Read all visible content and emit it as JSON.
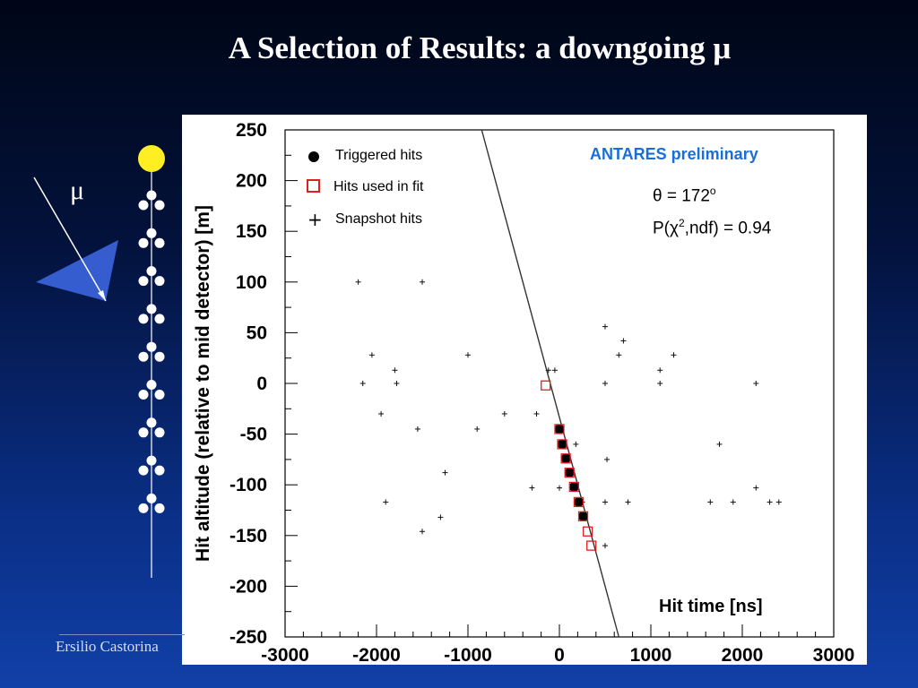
{
  "slide": {
    "title": "A Selection of Results: a downgoing μ",
    "footer": "Ersilio Castorina",
    "muon_label": "μ"
  },
  "colors": {
    "om_top": "#ffee22",
    "om": "#ffffff",
    "cone": "#3f6ae8",
    "fit_square": "#e02020",
    "annotation_blue": "#1a6ed8"
  },
  "chart_data": {
    "type": "scatter",
    "xlabel": "Hit time [ns]",
    "ylabel": "Hit altitude (relative to mid detector)  [m]",
    "xlim": [
      -3000,
      3000
    ],
    "ylim": [
      -250,
      250
    ],
    "x_ticks": [
      -3000,
      -2000,
      -1000,
      0,
      1000,
      2000,
      3000
    ],
    "y_ticks": [
      -250,
      -200,
      -150,
      -100,
      -50,
      0,
      50,
      100,
      150,
      200,
      250
    ],
    "legend_placement": "top-left",
    "legend": [
      "Triggered hits",
      "Hits used in fit",
      "Snapshot hits"
    ],
    "annotations": {
      "experiment": "ANTARES preliminary",
      "theta_prefix": "θ = 172",
      "theta_sup": "o",
      "prob_prefix": "P(χ",
      "prob_sup": "2",
      "prob_suffix": ",ndf) = 0.94"
    },
    "fit_line": [
      [
        -850,
        250
      ],
      [
        650,
        -250
      ]
    ],
    "series": [
      {
        "name": "Triggered hits",
        "points": [
          [
            0,
            -45
          ],
          [
            30,
            -60
          ],
          [
            70,
            -74
          ],
          [
            110,
            -88
          ],
          [
            160,
            -102
          ],
          [
            210,
            -117
          ],
          [
            260,
            -131
          ]
        ]
      },
      {
        "name": "Hits used in fit",
        "points": [
          [
            -150,
            -2
          ],
          [
            0,
            -45
          ],
          [
            30,
            -60
          ],
          [
            70,
            -74
          ],
          [
            110,
            -88
          ],
          [
            160,
            -102
          ],
          [
            210,
            -117
          ],
          [
            260,
            -131
          ],
          [
            310,
            -146
          ],
          [
            350,
            -160
          ]
        ]
      },
      {
        "name": "Snapshot hits",
        "points": [
          [
            -2200,
            100
          ],
          [
            -1500,
            100
          ],
          [
            -2050,
            28
          ],
          [
            -1800,
            13
          ],
          [
            -1000,
            28
          ],
          [
            -2150,
            0
          ],
          [
            -1780,
            0
          ],
          [
            -1950,
            -30
          ],
          [
            -1550,
            -45
          ],
          [
            -900,
            -45
          ],
          [
            -600,
            -30
          ],
          [
            -250,
            -30
          ],
          [
            -1250,
            -88
          ],
          [
            -1900,
            -117
          ],
          [
            -1300,
            -132
          ],
          [
            -1500,
            -146
          ],
          [
            -300,
            -103
          ],
          [
            -120,
            13
          ],
          [
            -50,
            13
          ],
          [
            500,
            56
          ],
          [
            700,
            42
          ],
          [
            650,
            28
          ],
          [
            500,
            0
          ],
          [
            180,
            -60
          ],
          [
            520,
            -75
          ],
          [
            0,
            -103
          ],
          [
            250,
            -117
          ],
          [
            500,
            -117
          ],
          [
            750,
            -117
          ],
          [
            1100,
            13
          ],
          [
            1250,
            28
          ],
          [
            1100,
            0
          ],
          [
            2150,
            0
          ],
          [
            1750,
            -60
          ],
          [
            1650,
            -117
          ],
          [
            1900,
            -117
          ],
          [
            2150,
            -103
          ],
          [
            2300,
            -117
          ],
          [
            2400,
            -117
          ],
          [
            500,
            -160
          ]
        ]
      }
    ]
  }
}
